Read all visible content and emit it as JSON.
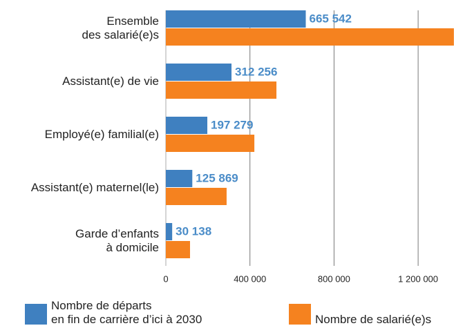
{
  "chart_data": {
    "type": "barh",
    "categories": [
      "Ensemble\ndes salarié(e)s",
      "Assistant(e) de vie",
      "Employé(e) familial(e)",
      "Assistant(e) maternel(le)",
      "Garde d’enfants\nà domicile"
    ],
    "series": [
      {
        "name": "Nombre de départs\nen fin de carrière d’ici à 2030",
        "color": "#3f80c0",
        "values": [
          665542,
          312256,
          197279,
          125869,
          30138
        ],
        "value_labels": [
          "665 542",
          "312 256",
          "197 279",
          "125 869",
          "30 138"
        ]
      },
      {
        "name": "Nombre de salarié(e)s",
        "color": "#f5821f",
        "values": [
          1370000,
          526000,
          421000,
          289000,
          115000
        ]
      }
    ],
    "xlim": [
      0,
      1370000
    ],
    "xticks": [
      {
        "value": 0,
        "label": "0"
      },
      {
        "value": 400000,
        "label": "400 000"
      },
      {
        "value": 800000,
        "label": "800 000"
      },
      {
        "value": 1200000,
        "label": "1 200 000"
      }
    ],
    "grid": true
  }
}
